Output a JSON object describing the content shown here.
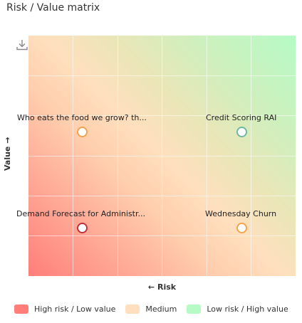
{
  "title": "Risk / Value matrix",
  "axes": {
    "x_label": "← Risk",
    "y_label": "Value →"
  },
  "toolbar": {
    "download_icon": "download-icon"
  },
  "items": [
    {
      "label": "Who eats the food we grow? th...",
      "marker_color": "#f3a34b",
      "quadrant": "high-risk-high-value"
    },
    {
      "label": "Credit Scoring RAI",
      "marker_color": "#6fb7a5",
      "quadrant": "low-risk-high-value"
    },
    {
      "label": "Demand Forecast for Administr...",
      "marker_color": "#c0313c",
      "quadrant": "high-risk-low-value"
    },
    {
      "label": "Wednesday Churn",
      "marker_color": "#f3a34b",
      "quadrant": "low-risk-low-value"
    }
  ],
  "legend": [
    {
      "label": "High risk / Low value",
      "color": "#ff7e7a"
    },
    {
      "label": "Medium",
      "color": "#ffdfbd"
    },
    {
      "label": "Low risk / High value",
      "color": "#b6fbc6"
    }
  ]
}
